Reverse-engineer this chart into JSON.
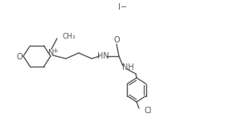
{
  "bg_color": "#ffffff",
  "line_color": "#555555",
  "text_color": "#555555",
  "figsize": [
    2.9,
    1.62
  ],
  "dpi": 100,
  "iodide_label": "I−",
  "methyl_label": "CH₃",
  "nitrogen_label": "N",
  "nitrogen_charge": "+",
  "oxygen_label": "O",
  "nh_label1": "HN",
  "nh_label2": "NH",
  "oxygen_urea_label": "O",
  "chlorine_label": "Cl"
}
